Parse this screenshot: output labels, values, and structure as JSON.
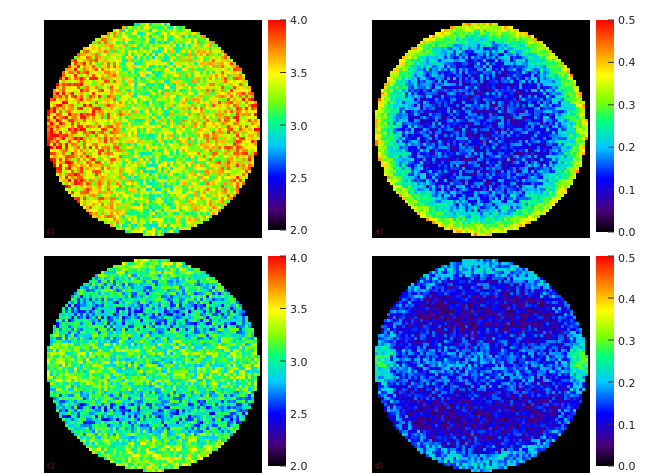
{
  "chart_data": [
    {
      "type": "heatmap",
      "panel_label": "c)",
      "shape": "disk",
      "pattern": "warm-left-right",
      "background": "#000000",
      "colorbar": {
        "min": 2.0,
        "max": 4.0,
        "ticks": [
          "4.0",
          "3.5",
          "3.0",
          "2.5",
          "2.0"
        ]
      }
    },
    {
      "type": "heatmap",
      "panel_label": "a)",
      "shape": "disk",
      "pattern": "limb-brightening",
      "background": "#000000",
      "colorbar": {
        "min": 0.0,
        "max": 0.5,
        "ticks": [
          "0.5",
          "0.4",
          "0.3",
          "0.2",
          "0.1",
          "0.0"
        ]
      }
    },
    {
      "type": "heatmap",
      "panel_label": "c)",
      "shape": "disk",
      "pattern": "horizontal-bands",
      "background": "#000000",
      "colorbar": {
        "min": 2.0,
        "max": 4.0,
        "ticks": [
          "4.0",
          "3.5",
          "3.0",
          "2.5",
          "2.0"
        ]
      }
    },
    {
      "type": "heatmap",
      "panel_label": "d)",
      "shape": "disk",
      "pattern": "low-with-edge-spots",
      "background": "#000000",
      "colorbar": {
        "min": 0.0,
        "max": 0.5,
        "ticks": [
          "0.5",
          "0.4",
          "0.3",
          "0.2",
          "0.1",
          "0.0"
        ]
      }
    }
  ],
  "colormap": [
    "#000000",
    "#4a0078",
    "#0000ff",
    "#00c8ff",
    "#00ff80",
    "#80ff00",
    "#ffff00",
    "#ff8000",
    "#ff0000"
  ]
}
